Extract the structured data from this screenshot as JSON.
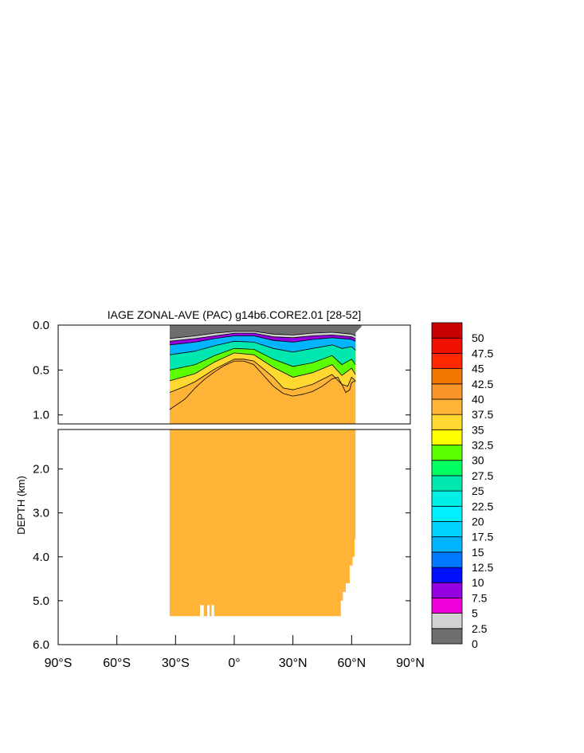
{
  "chart_data": {
    "type": "heatmap",
    "title": "IAGE ZONAL-AVE (PAC) g14b6.CORE2.01 [28-52]",
    "ylabel": "DEPTH (km)",
    "xlabel": "",
    "xlim": [
      -90,
      90
    ],
    "ylim_top_panel": [
      0.0,
      1.1
    ],
    "ylim_bottom_panel": [
      1.1,
      6.0
    ],
    "x_ticks": [
      {
        "value": -90,
        "label": "90°S"
      },
      {
        "value": -60,
        "label": "60°S"
      },
      {
        "value": -30,
        "label": "30°S"
      },
      {
        "value": 0,
        "label": "0°"
      },
      {
        "value": 30,
        "label": "30°N"
      },
      {
        "value": 60,
        "label": "60°N"
      },
      {
        "value": 90,
        "label": "90°N"
      }
    ],
    "y_ticks_top": [
      {
        "value": 0.0,
        "label": "0.0"
      },
      {
        "value": 0.5,
        "label": "0.5"
      },
      {
        "value": 1.0,
        "label": "1.0"
      }
    ],
    "y_ticks_bottom": [
      {
        "value": 2.0,
        "label": "2.0"
      },
      {
        "value": 3.0,
        "label": "3.0"
      },
      {
        "value": 4.0,
        "label": "4.0"
      },
      {
        "value": 5.0,
        "label": "5.0"
      },
      {
        "value": 6.0,
        "label": "6.0"
      }
    ],
    "colorbar": {
      "levels": [
        0,
        2.5,
        5,
        7.5,
        10,
        12.5,
        15,
        17.5,
        20,
        22.5,
        25,
        27.5,
        30,
        32.5,
        35,
        37.5,
        40,
        42.5,
        45,
        47.5,
        50
      ],
      "labels": [
        "0",
        "2.5",
        "5",
        "7.5",
        "10",
        "12.5",
        "15",
        "17.5",
        "20",
        "22.5",
        "25",
        "27.5",
        "30",
        "32.5",
        "35",
        "37.5",
        "40",
        "42.5",
        "45",
        "47.5",
        "50"
      ],
      "colors": [
        "#6e6e6e",
        "#d2d2d2",
        "#ee00d8",
        "#9400e0",
        "#0010ff",
        "#0078ff",
        "#00b4ff",
        "#00d2ff",
        "#00f0ff",
        "#00f0e8",
        "#00e8b0",
        "#00ff60",
        "#5cff00",
        "#ffff00",
        "#ffd830",
        "#ffb438",
        "#fa9628",
        "#f07800",
        "#ff2800",
        "#f01000",
        "#c80000"
      ]
    },
    "ocean_extent": {
      "south_lat": -33,
      "north_lat": 62,
      "bottom_depth_km": 5.35,
      "note_levels": "surface stratification bands"
    },
    "age_contours": [
      {
        "level": 2.5,
        "profile": [
          [
            -33,
            0.15
          ],
          [
            -20,
            0.12
          ],
          [
            -10,
            0.09
          ],
          [
            0,
            0.07
          ],
          [
            10,
            0.07
          ],
          [
            20,
            0.1
          ],
          [
            30,
            0.11
          ],
          [
            40,
            0.09
          ],
          [
            50,
            0.08
          ],
          [
            60,
            0.1
          ],
          [
            62,
            0.12
          ]
        ]
      },
      {
        "level": 5,
        "profile": [
          [
            -33,
            0.18
          ],
          [
            -20,
            0.15
          ],
          [
            -10,
            0.12
          ],
          [
            0,
            0.09
          ],
          [
            10,
            0.09
          ],
          [
            20,
            0.13
          ],
          [
            30,
            0.14
          ],
          [
            40,
            0.12
          ],
          [
            50,
            0.11
          ],
          [
            60,
            0.13
          ],
          [
            62,
            0.15
          ]
        ]
      },
      {
        "level": 10,
        "profile": [
          [
            -33,
            0.22
          ],
          [
            -20,
            0.19
          ],
          [
            -10,
            0.15
          ],
          [
            0,
            0.12
          ],
          [
            10,
            0.12
          ],
          [
            20,
            0.17
          ],
          [
            30,
            0.19
          ],
          [
            40,
            0.16
          ],
          [
            50,
            0.14
          ],
          [
            60,
            0.16
          ],
          [
            62,
            0.18
          ]
        ]
      },
      {
        "level": 20,
        "profile": [
          [
            -33,
            0.33
          ],
          [
            -20,
            0.29
          ],
          [
            -10,
            0.23
          ],
          [
            0,
            0.18
          ],
          [
            10,
            0.19
          ],
          [
            20,
            0.26
          ],
          [
            30,
            0.3
          ],
          [
            40,
            0.26
          ],
          [
            50,
            0.22
          ],
          [
            55,
            0.26
          ],
          [
            60,
            0.24
          ],
          [
            62,
            0.28
          ]
        ]
      },
      {
        "level": 30,
        "profile": [
          [
            -33,
            0.5
          ],
          [
            -20,
            0.44
          ],
          [
            -10,
            0.34
          ],
          [
            0,
            0.26
          ],
          [
            10,
            0.27
          ],
          [
            20,
            0.38
          ],
          [
            30,
            0.46
          ],
          [
            40,
            0.42
          ],
          [
            50,
            0.34
          ],
          [
            55,
            0.44
          ],
          [
            60,
            0.38
          ],
          [
            62,
            0.44
          ]
        ]
      },
      {
        "level": 35,
        "profile": [
          [
            -33,
            0.62
          ],
          [
            -20,
            0.54
          ],
          [
            -10,
            0.41
          ],
          [
            0,
            0.31
          ],
          [
            10,
            0.33
          ],
          [
            20,
            0.47
          ],
          [
            30,
            0.58
          ],
          [
            40,
            0.53
          ],
          [
            50,
            0.44
          ],
          [
            55,
            0.56
          ],
          [
            60,
            0.48
          ],
          [
            62,
            0.55
          ]
        ]
      },
      {
        "level": 37.5,
        "profile": [
          [
            -33,
            0.75
          ],
          [
            -25,
            0.68
          ],
          [
            -20,
            0.63
          ],
          [
            -10,
            0.49
          ],
          [
            0,
            0.38
          ],
          [
            5,
            0.38
          ],
          [
            10,
            0.4
          ],
          [
            20,
            0.58
          ],
          [
            25,
            0.7
          ],
          [
            30,
            0.72
          ],
          [
            40,
            0.66
          ],
          [
            50,
            0.55
          ],
          [
            55,
            0.66
          ],
          [
            58,
            0.68
          ],
          [
            60,
            0.58
          ],
          [
            62,
            0.62
          ]
        ]
      },
      {
        "level": 40,
        "profile": [
          [
            -33,
            0.94
          ],
          [
            -25,
            0.82
          ],
          [
            -20,
            0.7
          ],
          [
            -15,
            0.6
          ],
          [
            -10,
            0.52
          ],
          [
            -5,
            0.45
          ],
          [
            0,
            0.4
          ],
          [
            5,
            0.4
          ],
          [
            10,
            0.44
          ],
          [
            15,
            0.56
          ],
          [
            20,
            0.68
          ],
          [
            25,
            0.76
          ],
          [
            30,
            0.79
          ],
          [
            35,
            0.77
          ],
          [
            40,
            0.74
          ],
          [
            45,
            0.68
          ],
          [
            50,
            0.6
          ],
          [
            53,
            0.58
          ],
          [
            55,
            0.66
          ],
          [
            57,
            0.75
          ],
          [
            59,
            0.72
          ],
          [
            60,
            0.64
          ],
          [
            62,
            0.62
          ]
        ]
      }
    ]
  }
}
